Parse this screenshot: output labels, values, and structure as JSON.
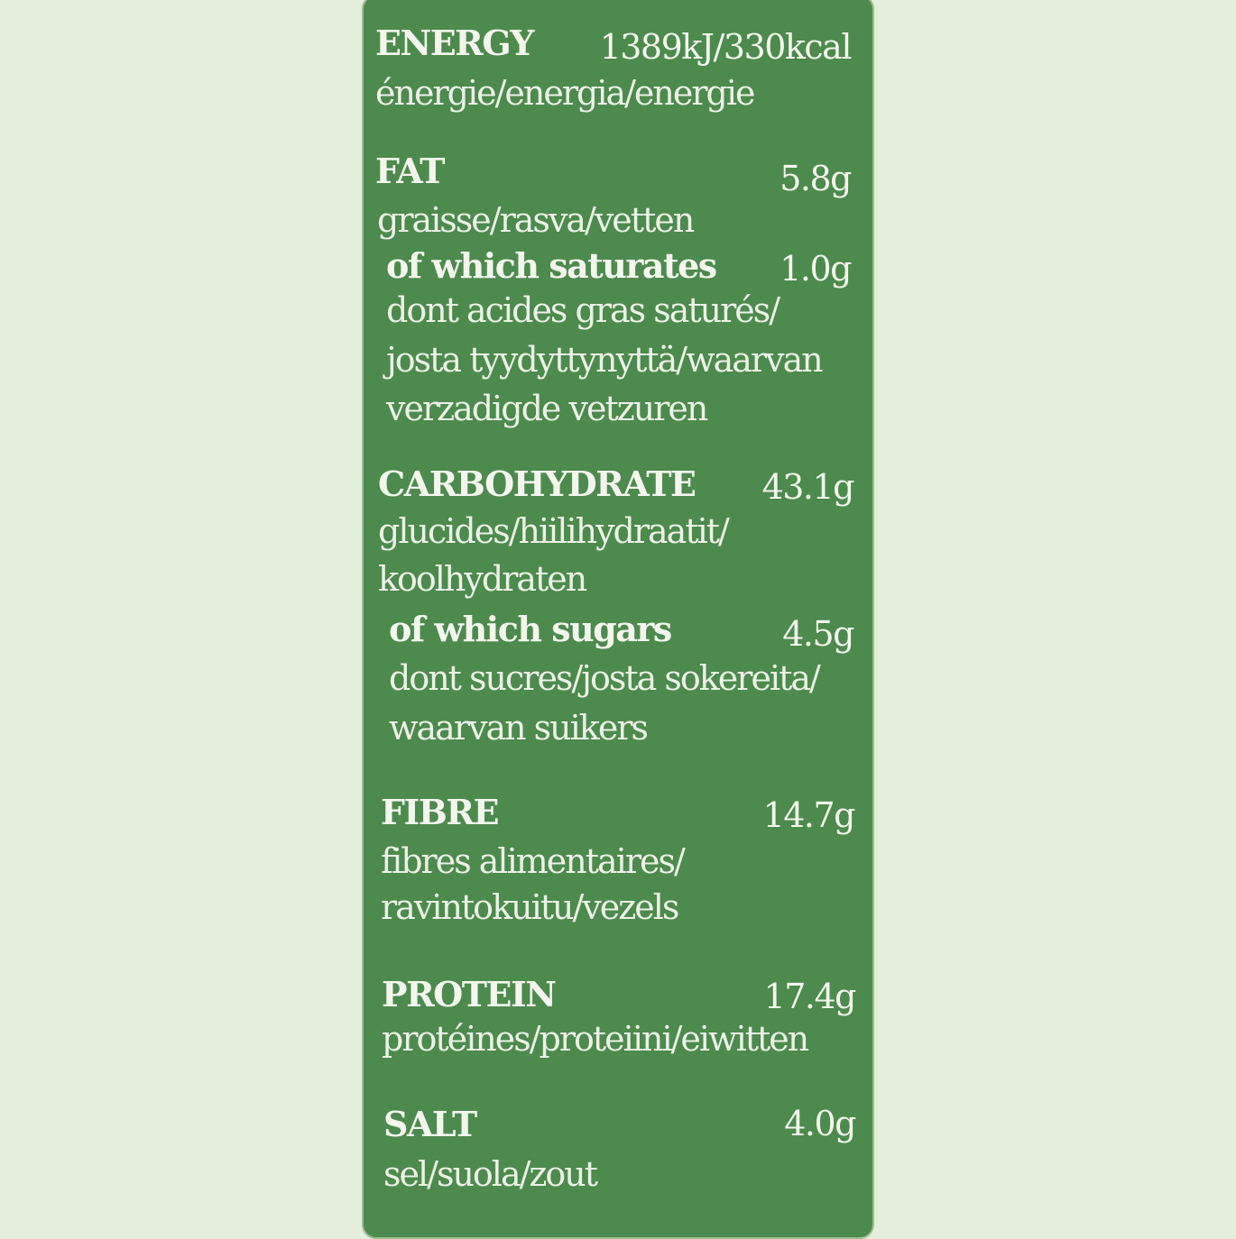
{
  "label": {
    "energy": {
      "name": "ENERGY",
      "value": "1389kJ/330kcal",
      "translations": "énergie/energia/energie"
    },
    "fat": {
      "name": "FAT",
      "value": "5.8g",
      "translations": "graisse/rasva/vetten",
      "saturates": {
        "name": "of which saturates",
        "value": "1.0g",
        "translations_1": "dont acides gras saturés/",
        "translations_2": "josta tyydyttynyttä/waarvan",
        "translations_3": "verzadigde vetzuren"
      }
    },
    "carbohydrate": {
      "name": "CARBOHYDRATE",
      "value": "43.1g",
      "translations_1": "glucides/hiilihydraatit/",
      "translations_2": "koolhydraten",
      "sugars": {
        "name": "of which sugars",
        "value": "4.5g",
        "translations_1": "dont sucres/josta sokereita/",
        "translations_2": "waarvan suikers"
      }
    },
    "fibre": {
      "name": "FIBRE",
      "value": "14.7g",
      "translations_1": "fibres alimentaires/",
      "translations_2": "ravintokuitu/vezels"
    },
    "protein": {
      "name": "PROTEIN",
      "value": "17.4g",
      "translations": "protéines/proteiini/eiwitten"
    },
    "salt": {
      "name": "SALT",
      "value": "4.0g",
      "translations": "sel/suola/zout"
    }
  }
}
